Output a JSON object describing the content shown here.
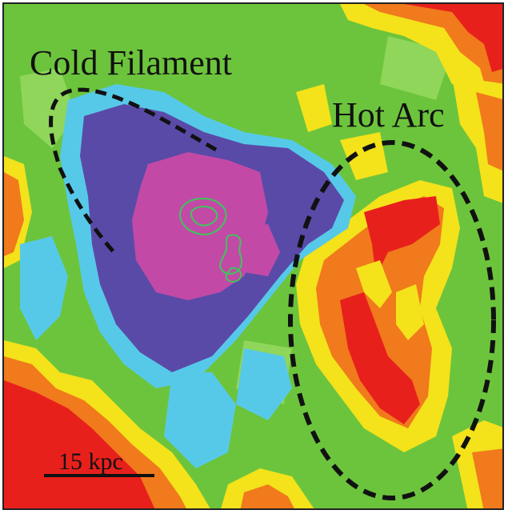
{
  "labels": {
    "cold_region": "Cold Filament",
    "hot_region": "Hot Arc",
    "scale_bar": "15 kpc"
  },
  "colors": {
    "background_green": "#6cc43c",
    "cold_core_magenta": "#c24aa6",
    "cold_purple": "#5a4aa8",
    "cool_cyan": "#57c9e8",
    "hot_red": "#e8201c",
    "warm_orange": "#f07a1c",
    "warm_yellow": "#f4e21a",
    "contour_green": "#3ec65a",
    "annotation_black": "#111111"
  }
}
